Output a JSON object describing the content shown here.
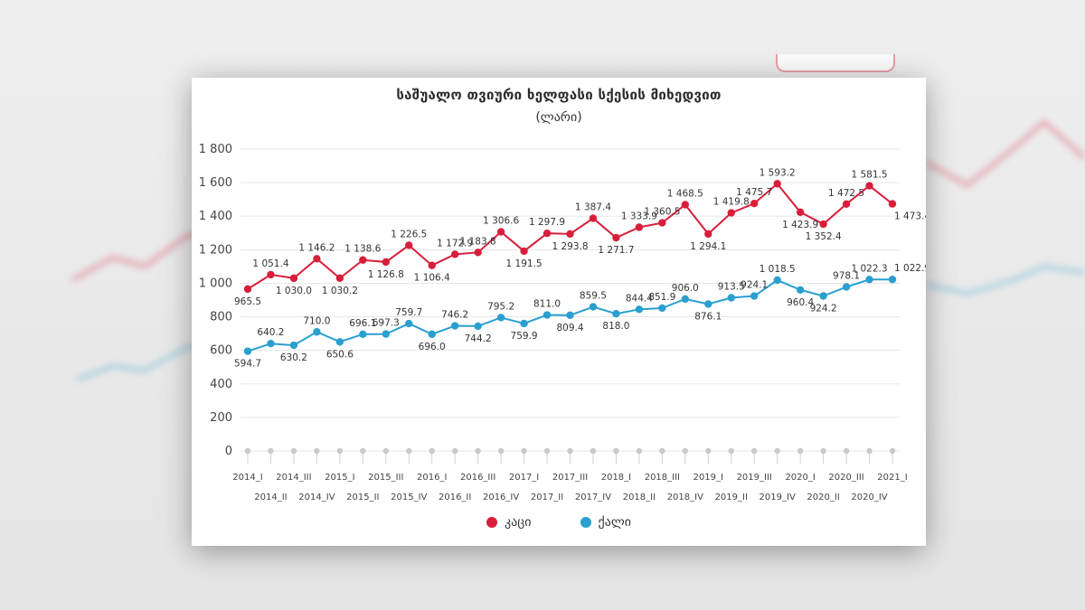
{
  "colors": {
    "male": "#d81e3a",
    "female": "#2a9fd0",
    "grid": "#e6e6e6",
    "axis_text": "#444444"
  },
  "chart_data": {
    "type": "line",
    "title": "საშუალო თვიური ხელფასი სქესის მიხედვით",
    "subtitle": "(ლარი)",
    "ylim": [
      0,
      1800
    ],
    "yticks": [
      0,
      200,
      400,
      600,
      800,
      1000,
      1200,
      1400,
      1600,
      1800
    ],
    "ytick_labels": [
      "0",
      "200",
      "400",
      "600",
      "800",
      "1 000",
      "1 200",
      "1 400",
      "1 600",
      "1 800"
    ],
    "grid": true,
    "legend_position": "bottom-center",
    "categories": [
      "2014_I",
      "2014_II",
      "2014_III",
      "2014_IV",
      "2015_I",
      "2015_II",
      "2015_III",
      "2015_IV",
      "2016_I",
      "2016_II",
      "2016_III",
      "2016_IV",
      "2017_I",
      "2017_II",
      "2017_III",
      "2017_IV",
      "2018_I",
      "2018_II",
      "2018_III",
      "2018_IV",
      "2019_I",
      "2019_II",
      "2019_III",
      "2019_IV",
      "2020_I",
      "2020_II",
      "2020_III",
      "2020_IV",
      "2021_I"
    ],
    "series": [
      {
        "name": "კაცი",
        "color_key": "male",
        "values": [
          965.5,
          1051.4,
          1030.0,
          1146.2,
          1030.2,
          1138.6,
          1126.8,
          1226.5,
          1106.4,
          1172.9,
          1183.8,
          1306.6,
          1191.5,
          1297.9,
          1293.8,
          1387.4,
          1271.7,
          1333.9,
          1360.5,
          1468.5,
          1294.1,
          1419.8,
          1475.7,
          1593.2,
          1423.9,
          1352.4,
          1472.5,
          1581.5,
          1473.4
        ],
        "labels": [
          "965.5",
          "1 051.4",
          "1 030.0",
          "1 146.2",
          "1 030.2",
          "1 138.6",
          "1 126.8",
          "1 226.5",
          "1 106.4",
          "1 172.9",
          "1 183.8",
          "1 306.6",
          "1 191.5",
          "1 297.9",
          "1 293.8",
          "1 387.4",
          "1 271.7",
          "1 333.9",
          "1 360.5",
          "1 468.5",
          "1 294.1",
          "1 419.8",
          "1 475.7",
          "1 593.2",
          "1 423.9",
          "1 352.4",
          "1 472.5",
          "1 581.5",
          "1 473.4"
        ]
      },
      {
        "name": "ქალი",
        "color_key": "female",
        "values": [
          594.7,
          640.2,
          630.2,
          710.0,
          650.6,
          696.1,
          697.3,
          759.7,
          696.0,
          746.2,
          744.2,
          795.2,
          759.9,
          811.0,
          809.4,
          859.5,
          818.0,
          844.4,
          851.9,
          906.0,
          876.1,
          913.5,
          924.1,
          1018.5,
          960.4,
          924.2,
          978.1,
          1022.3,
          1022.9
        ],
        "labels": [
          "594.7",
          "640.2",
          "630.2",
          "710.0",
          "650.6",
          "696.1",
          "697.3",
          "759.7",
          "696.0",
          "746.2",
          "744.2",
          "795.2",
          "759.9",
          "811.0",
          "809.4",
          "859.5",
          "818.0",
          "844.4",
          "851.9",
          "906.0",
          "876.1",
          "913.5",
          "924.1",
          "1 018.5",
          "960.4",
          "924.2",
          "978.1",
          "1 022.3",
          "1 022.9"
        ]
      }
    ]
  }
}
